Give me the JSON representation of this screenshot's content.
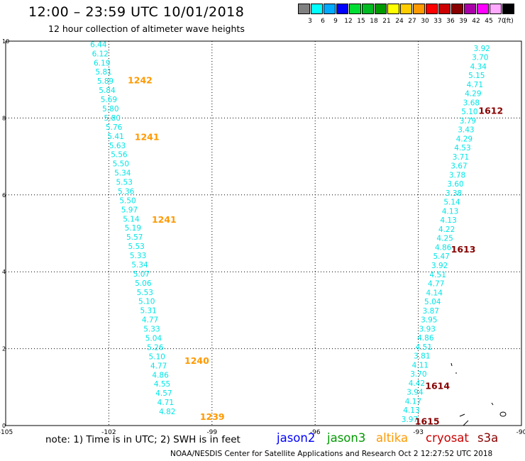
{
  "header": {
    "title": "12:00 – 23:59 UTC 10/01/2018",
    "subtitle": "12 hour collection of altimeter wave heights"
  },
  "color_scale": {
    "unit": "(ft)",
    "items": [
      {
        "label": "3",
        "color": "#808080"
      },
      {
        "label": "6",
        "color": "#00ffff"
      },
      {
        "label": "9",
        "color": "#00aaff"
      },
      {
        "label": "12",
        "color": "#0000ff"
      },
      {
        "label": "15",
        "color": "#00dd33"
      },
      {
        "label": "18",
        "color": "#00bb22"
      },
      {
        "label": "21",
        "color": "#009900"
      },
      {
        "label": "24",
        "color": "#ffff00"
      },
      {
        "label": "27",
        "color": "#ffcc00"
      },
      {
        "label": "30",
        "color": "#ff9900"
      },
      {
        "label": "33",
        "color": "#ff0000"
      },
      {
        "label": "36",
        "color": "#cc0000"
      },
      {
        "label": "39",
        "color": "#880000"
      },
      {
        "label": "42",
        "color": "#aa00aa"
      },
      {
        "label": "45",
        "color": "#ff00ff"
      },
      {
        "label": "70",
        "color": "#ffaaff"
      },
      {
        "label": "",
        "color": "#000000"
      }
    ]
  },
  "chart_data": {
    "type": "scatter",
    "xlim": [
      -105,
      -90
    ],
    "ylim": [
      0,
      10
    ],
    "x_ticks": [
      -105,
      -102,
      -99,
      -96,
      -93,
      -90
    ],
    "x_tick_labels": [
      "-105",
      "-102",
      "-99",
      "-96",
      "-93",
      "-90"
    ],
    "y_ticks": [
      0,
      2,
      4,
      6,
      8,
      10
    ],
    "y_tick_labels": [
      "0",
      "2",
      "4",
      "6",
      "8",
      "10"
    ],
    "grid": "dotted",
    "tracks": [
      {
        "satellite": "altika",
        "color": "#00e6e6",
        "start": [
          -102.3,
          9.9
        ],
        "end": [
          -100.3,
          0.35
        ],
        "values": [
          "6.44",
          "6.12",
          "6.19",
          "5.81",
          "5.89",
          "5.84",
          "5.69",
          "5.80",
          "5.80",
          "5.76",
          "5.41",
          "5.63",
          "5.56",
          "5.50",
          "5.34",
          "5.53",
          "5.36",
          "5.50",
          "5.97",
          "5.14",
          "5.19",
          "5.57",
          "5.53",
          "5.33",
          "5.34",
          "5.07",
          "5.06",
          "5.53",
          "5.10",
          "5.31",
          "4.77",
          "5.33",
          "5.04",
          "5.26",
          "5.10",
          "4.77",
          "4.86",
          "4.55",
          "4.57",
          "4.71",
          "4.82"
        ],
        "times": [
          {
            "text": "1242",
            "x": -101.45,
            "y": 8.98,
            "color": "#ff9900"
          },
          {
            "text": "1241",
            "x": -101.25,
            "y": 7.5,
            "color": "#ff9900"
          },
          {
            "text": "1241",
            "x": -100.75,
            "y": 5.35,
            "color": "#ff9900"
          },
          {
            "text": "1240",
            "x": -99.8,
            "y": 1.68,
            "color": "#ff9900"
          },
          {
            "text": "1239",
            "x": -99.35,
            "y": 0.22,
            "color": "#ff9900"
          }
        ]
      },
      {
        "satellite": "cryosat",
        "color": "#00e6e6",
        "start": [
          -91.15,
          9.8
        ],
        "end": [
          -93.25,
          0.15
        ],
        "values": [
          "3.92",
          "3.70",
          "4.34",
          "5.15",
          "4.71",
          "4.29",
          "3.68",
          "5.10",
          "3.79",
          "3.43",
          "4.29",
          "4.53",
          "3.71",
          "3.67",
          "3.78",
          "3.60",
          "3.38",
          "5.14",
          "4.13",
          "4.13",
          "4.22",
          "4.25",
          "4.86",
          "5.47",
          "3.92",
          "4.51",
          "4.77",
          "4.14",
          "5.04",
          "3.87",
          "3.95",
          "3.93",
          "4.86",
          "4.51",
          "3.81",
          "4.11",
          "3.70",
          "4.42",
          "3.94",
          "4.17",
          "4.13",
          "3.97"
        ],
        "times": [
          {
            "text": "1612",
            "x": -91.25,
            "y": 8.18,
            "color": "#880000"
          },
          {
            "text": "1613",
            "x": -92.05,
            "y": 4.58,
            "color": "#880000"
          },
          {
            "text": "1614",
            "x": -92.8,
            "y": 1.02,
            "color": "#880000"
          },
          {
            "text": "1615",
            "x": -93.1,
            "y": 0.1,
            "color": "#880000"
          }
        ]
      }
    ]
  },
  "note": "note: 1) Time is in UTC; 2) SWH is in feet",
  "legend": [
    {
      "name": "jason2",
      "color": "#0000ff"
    },
    {
      "name": "jason3",
      "color": "#009900"
    },
    {
      "name": "altika",
      "color": "#ff9900"
    },
    {
      "name": "cryosat",
      "color": "#cc0000"
    },
    {
      "name": "s3a",
      "color": "#880000"
    }
  ],
  "footer": "NOAA/NESDIS Center for Satellite Applications and Research   Oct  2 12:27:52 UTC 2018"
}
